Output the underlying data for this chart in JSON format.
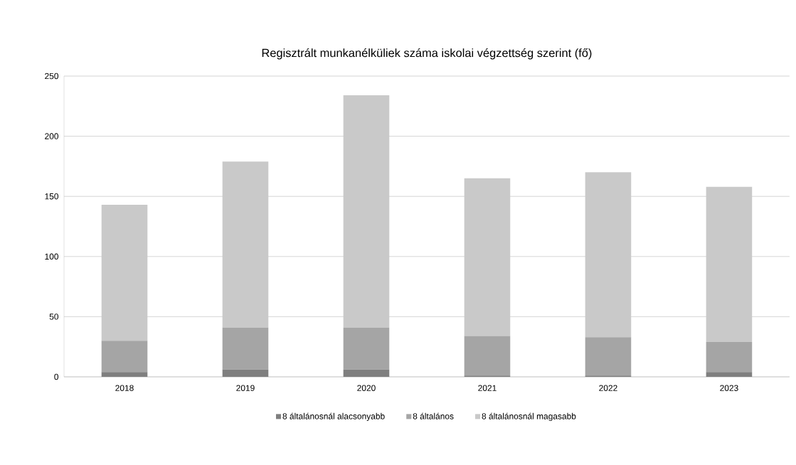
{
  "chart_data": {
    "type": "bar",
    "title": "Regisztrált munkanélküliek száma iskolai végzettség szerint (fő)",
    "categories": [
      "2018",
      "2019",
      "2020",
      "2021",
      "2022",
      "2023"
    ],
    "stacked": true,
    "series": [
      {
        "name": "8 általánosnál alacsonyabb",
        "color": "#7f7f7f",
        "values": [
          4,
          6,
          6,
          1,
          1,
          4
        ]
      },
      {
        "name": "8 általános",
        "color": "#a5a5a5",
        "values": [
          26,
          35,
          35,
          33,
          32,
          25
        ]
      },
      {
        "name": "8 általánosnál magasabb",
        "color": "#c9c9c9",
        "values": [
          113,
          138,
          193,
          131,
          137,
          129
        ]
      }
    ],
    "ylim": [
      0,
      250
    ],
    "yticks": [
      0,
      50,
      100,
      150,
      200,
      250
    ],
    "grid": "y",
    "legend": "bottom"
  }
}
